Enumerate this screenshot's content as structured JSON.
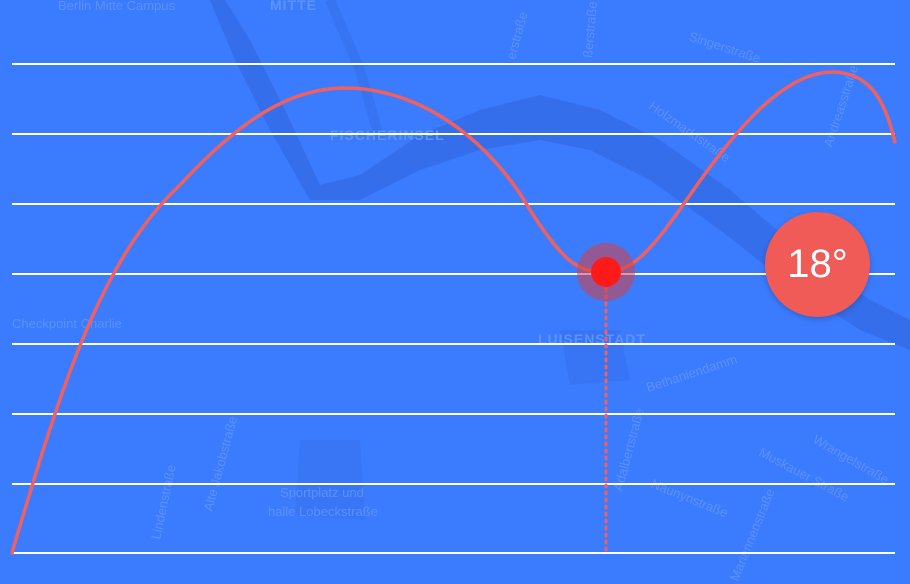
{
  "map_labels": {
    "berlin_mitte_campus": "Berlin Mitte Campus",
    "mitte": "MITTE",
    "strasse_top1": "erstraße",
    "strasse_top2": "ßerstraße",
    "singerstrasse": "Singerstraße",
    "holzmarktstrasse": "Holzmarktstraße",
    "andreasstrasse": "Andreasstraße",
    "fischerinsel": "FISCHERINSEL",
    "checkpoint_charlie": "Checkpoint Charlie",
    "luisenstadt": "LUISENSTADT",
    "bethaniendamm": "Bethaniendamm",
    "adalbertstrasse": "Adalbertstraße",
    "lindenstrasse": "Lindenstraße",
    "alte_jakobstrasse": "Alte Jakobstraße",
    "sportplatz_line1": "Sportplatz und",
    "sportplatz_line2": "halle Lobeckstraße",
    "naunynstrasse": "Naunynstraße",
    "muskauer_strasse": "Muskauer Straße",
    "wrangelstrasse": "Wrangelstraße",
    "mariannenstrasse": "Mariannenstraße"
  },
  "temperature": {
    "value_label": "18°"
  },
  "colors": {
    "background": "#3b7bfd",
    "curve": "#f06060",
    "marker": "#ff1a1a",
    "badge": "#f05b57",
    "gridline": "#ffffff"
  }
}
